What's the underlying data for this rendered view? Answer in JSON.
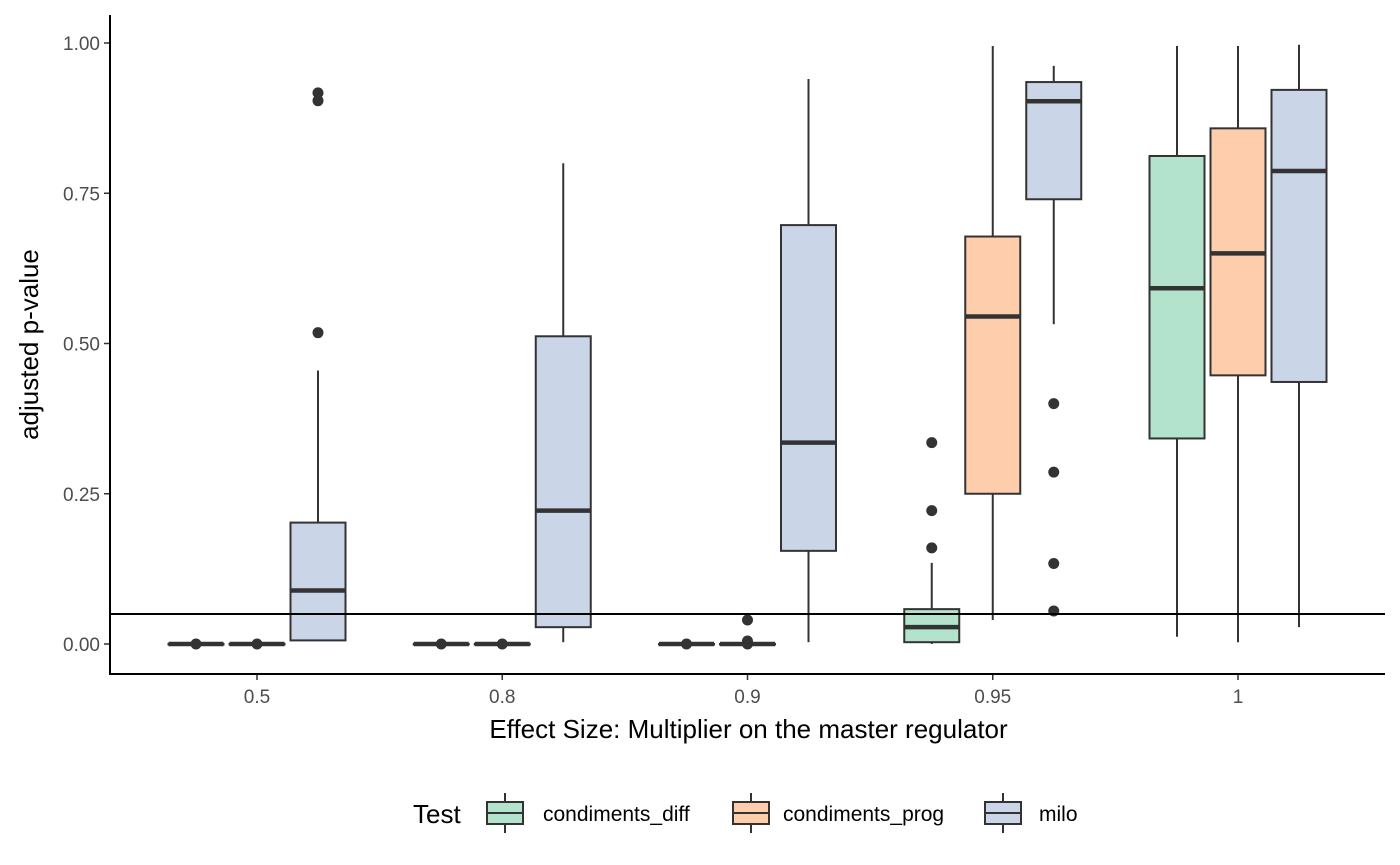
{
  "chart_data": {
    "type": "boxplot",
    "xlabel": "Effect Size: Multiplier on the master regulator",
    "ylabel": "adjusted p-value",
    "categories": [
      "0.5",
      "0.8",
      "0.9",
      "0.95",
      "1"
    ],
    "ylim": [
      -0.05,
      1.05
    ],
    "yticks": [
      0.0,
      0.25,
      0.5,
      0.75,
      1.0
    ],
    "ytick_labels": [
      "0.00",
      "0.25",
      "0.50",
      "0.75",
      "1.00"
    ],
    "reference_line": 0.05,
    "grid": false,
    "legend": {
      "title": "Test",
      "position": "bottom",
      "entries": [
        "condiments_diff",
        "condiments_prog",
        "milo"
      ]
    },
    "colors": {
      "condiments_diff": "#b3e2cd",
      "condiments_prog": "#fdcdac",
      "milo": "#cbd5e8",
      "outline": "#333333"
    },
    "series": [
      {
        "name": "condiments_diff",
        "boxes": [
          {
            "category": "0.5",
            "min": 0.0,
            "q1": 0.0,
            "median": 0.0,
            "q3": 0.0,
            "max": 0.0,
            "outliers": [
              0.0
            ]
          },
          {
            "category": "0.8",
            "min": 0.0,
            "q1": 0.0,
            "median": 0.0,
            "q3": 0.0,
            "max": 0.0,
            "outliers": [
              0.0
            ]
          },
          {
            "category": "0.9",
            "min": 0.0,
            "q1": 0.0,
            "median": 0.0,
            "q3": 0.0,
            "max": 0.0,
            "outliers": [
              0.0
            ]
          },
          {
            "category": "0.95",
            "min": 0.0,
            "q1": 0.003,
            "median": 0.028,
            "q3": 0.058,
            "max": 0.135,
            "outliers": [
              0.16,
              0.222,
              0.335
            ]
          },
          {
            "category": "1",
            "min": 0.012,
            "q1": 0.342,
            "median": 0.592,
            "q3": 0.812,
            "max": 0.995,
            "outliers": []
          }
        ]
      },
      {
        "name": "condiments_prog",
        "boxes": [
          {
            "category": "0.5",
            "min": 0.0,
            "q1": 0.0,
            "median": 0.0,
            "q3": 0.0,
            "max": 0.0,
            "outliers": [
              0.0
            ]
          },
          {
            "category": "0.8",
            "min": 0.0,
            "q1": 0.0,
            "median": 0.0,
            "q3": 0.0,
            "max": 0.0,
            "outliers": [
              0.0
            ]
          },
          {
            "category": "0.9",
            "min": 0.0,
            "q1": 0.0,
            "median": 0.0,
            "q3": 0.0,
            "max": 0.0,
            "outliers": [
              0.0,
              0.005,
              0.04
            ]
          },
          {
            "category": "0.95",
            "min": 0.04,
            "q1": 0.25,
            "median": 0.545,
            "q3": 0.678,
            "max": 0.995,
            "outliers": []
          },
          {
            "category": "1",
            "min": 0.003,
            "q1": 0.447,
            "median": 0.65,
            "q3": 0.858,
            "max": 0.995,
            "outliers": []
          }
        ]
      },
      {
        "name": "milo",
        "boxes": [
          {
            "category": "0.5",
            "min": 0.005,
            "q1": 0.006,
            "median": 0.089,
            "q3": 0.202,
            "max": 0.455,
            "outliers": [
              0.518,
              0.904,
              0.917
            ]
          },
          {
            "category": "0.8",
            "min": 0.003,
            "q1": 0.028,
            "median": 0.222,
            "q3": 0.512,
            "max": 0.8,
            "outliers": []
          },
          {
            "category": "0.9",
            "min": 0.003,
            "q1": 0.155,
            "median": 0.335,
            "q3": 0.697,
            "max": 0.94,
            "outliers": []
          },
          {
            "category": "0.95",
            "min": 0.532,
            "q1": 0.74,
            "median": 0.903,
            "q3": 0.935,
            "max": 0.962,
            "outliers": [
              0.055,
              0.134,
              0.286,
              0.4
            ]
          },
          {
            "category": "1",
            "min": 0.028,
            "q1": 0.436,
            "median": 0.787,
            "q3": 0.922,
            "max": 0.997,
            "outliers": []
          }
        ]
      }
    ]
  }
}
